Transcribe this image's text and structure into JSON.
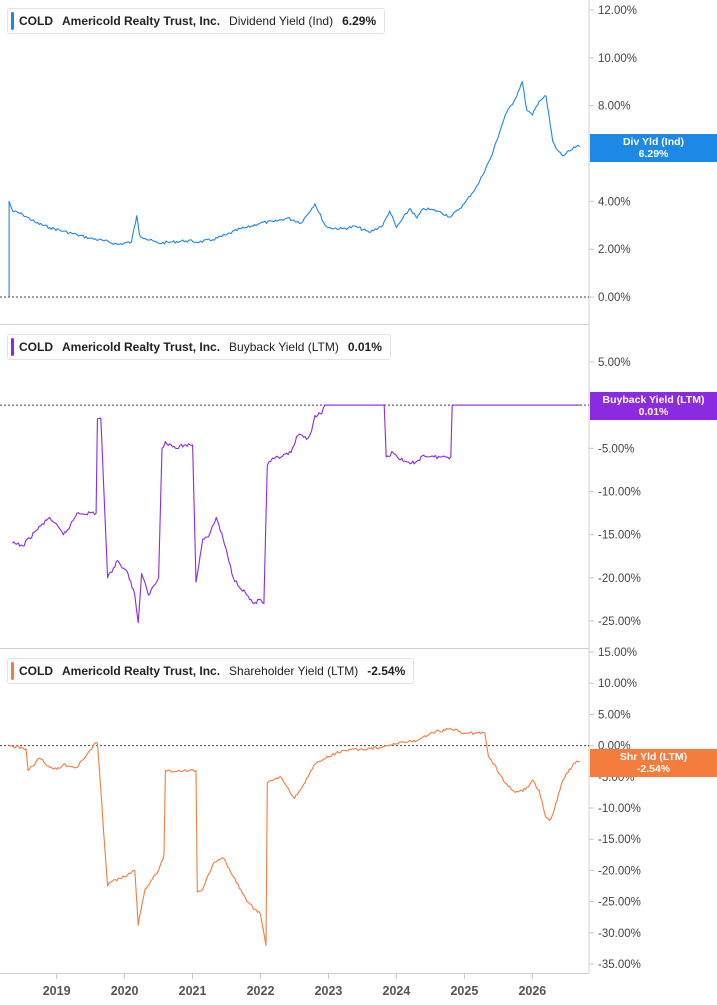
{
  "ticker": "COLD",
  "company": "Americold Realty Trust, Inc.",
  "panels": [
    {
      "key": "div",
      "metric": "Dividend Yield (Ind)",
      "value": "6.29%",
      "color": "#1e88e5",
      "badge_label": "Div Yld (Ind)",
      "badge_value": "6.29%"
    },
    {
      "key": "buyback",
      "metric": "Buyback Yield (LTM)",
      "value": "0.01%",
      "color": "#8a2be2",
      "badge_label": "Buyback Yield (LTM)",
      "badge_value": "0.01%"
    },
    {
      "key": "shareholder",
      "metric": "Shareholder Yield (LTM)",
      "value": "-2.54%",
      "color": "#f47c3c",
      "badge_label": "Shr Yld (LTM)",
      "badge_value": "-2.54%"
    }
  ],
  "x_axis": {
    "labels": [
      "2019",
      "2020",
      "2021",
      "2022",
      "2023",
      "2024",
      "2025",
      "2026"
    ]
  },
  "chart_data": [
    {
      "type": "line",
      "series": [
        {
          "name": "Dividend Yield (Ind)",
          "color": "#1e88e5"
        }
      ],
      "yticks": [
        "12.00%",
        "10.00%",
        "8.00%",
        "6.00%",
        "4.00%",
        "2.00%",
        "0.00%"
      ],
      "ylim": [
        0,
        12
      ],
      "x": [
        2018.3,
        2018.3,
        2018.35,
        2018.5,
        2018.7,
        2018.9,
        2019.1,
        2019.3,
        2019.5,
        2019.7,
        2019.9,
        2020.1,
        2020.18,
        2020.22,
        2020.3,
        2020.5,
        2020.7,
        2020.9,
        2021.1,
        2021.3,
        2021.5,
        2021.7,
        2021.8,
        2022.0,
        2022.2,
        2022.4,
        2022.6,
        2022.8,
        2022.95,
        2023.0,
        2023.2,
        2023.4,
        2023.6,
        2023.8,
        2023.9,
        2024.0,
        2024.2,
        2024.3,
        2024.4,
        2024.6,
        2024.8,
        2025.0,
        2025.2,
        2025.4,
        2025.6,
        2025.75,
        2025.85,
        2025.92,
        2026.0,
        2026.1,
        2026.2,
        2026.3,
        2026.35,
        2026.45,
        2026.55,
        2026.65,
        2026.7
      ],
      "values": [
        0,
        4.0,
        3.6,
        3.45,
        3.1,
        2.9,
        2.75,
        2.6,
        2.45,
        2.35,
        2.2,
        2.3,
        3.4,
        2.6,
        2.45,
        2.25,
        2.3,
        2.35,
        2.3,
        2.4,
        2.6,
        2.85,
        2.9,
        3.1,
        3.15,
        3.3,
        3.1,
        3.9,
        3.0,
        2.9,
        2.85,
        2.95,
        2.7,
        3.0,
        3.6,
        2.9,
        3.7,
        3.3,
        3.7,
        3.6,
        3.35,
        3.9,
        4.7,
        5.9,
        7.6,
        8.3,
        9.0,
        7.8,
        7.6,
        8.2,
        8.4,
        6.5,
        6.2,
        5.9,
        6.1,
        6.3,
        6.29
      ]
    },
    {
      "type": "line",
      "series": [
        {
          "name": "Buyback Yield (LTM)",
          "color": "#8a2be2"
        }
      ],
      "yticks": [
        "5.00%",
        "-5.00%",
        "-10.00%",
        "-15.00%",
        "-20.00%",
        "-25.00%"
      ],
      "ylim": [
        -27.5,
        8.2
      ],
      "x": [
        2018.35,
        2018.5,
        2018.7,
        2018.9,
        2019.1,
        2019.2,
        2019.3,
        2019.58,
        2019.6,
        2019.65,
        2019.75,
        2019.9,
        2020.05,
        2020.15,
        2020.2,
        2020.25,
        2020.35,
        2020.5,
        2020.55,
        2020.6,
        2020.75,
        2020.9,
        2021.0,
        2021.05,
        2021.15,
        2021.25,
        2021.35,
        2021.45,
        2021.6,
        2021.8,
        2021.9,
        2022.0,
        2022.05,
        2022.1,
        2022.15,
        2022.2,
        2022.3,
        2022.45,
        2022.55,
        2022.7,
        2022.75,
        2022.8,
        2022.9,
        2022.95,
        2023.0,
        2023.2,
        2023.5,
        2023.82,
        2023.85,
        2023.95,
        2024.1,
        2024.2,
        2024.3,
        2024.4,
        2024.55,
        2024.8,
        2024.82,
        2025.0,
        2025.5,
        2026.0,
        2026.5,
        2026.7
      ],
      "values": [
        -16.0,
        -16.3,
        -14.5,
        -13.0,
        -15.0,
        -14.0,
        -12.5,
        -12.5,
        -1.6,
        -1.5,
        -20.0,
        -18.0,
        -19.5,
        -22.0,
        -25.2,
        -19.5,
        -22.0,
        -20.0,
        -5.0,
        -4.2,
        -5.0,
        -4.6,
        -4.6,
        -20.5,
        -15.5,
        -15.0,
        -13.0,
        -15.5,
        -20.0,
        -22.0,
        -23.0,
        -22.5,
        -23.0,
        -7.0,
        -6.5,
        -6.2,
        -6.0,
        -5.5,
        -3.5,
        -3.8,
        -3.0,
        -1.2,
        -1.0,
        0.01,
        0.01,
        0.01,
        0.01,
        0.01,
        -6.0,
        -5.5,
        -6.5,
        -6.8,
        -6.5,
        -5.8,
        -6.0,
        -6.0,
        0.01,
        0.01,
        0.01,
        0.01,
        0.01,
        0.01
      ]
    },
    {
      "type": "line",
      "series": [
        {
          "name": "Shareholder Yield (LTM)",
          "color": "#f47c3c"
        }
      ],
      "yticks": [
        "15.00%",
        "10.00%",
        "5.00%",
        "0.00%",
        "-5.00%",
        "-10.00%",
        "-15.00%",
        "-20.00%",
        "-25.00%",
        "-30.00%",
        "-35.00%"
      ],
      "ylim": [
        -36.5,
        16
      ],
      "x": [
        2018.3,
        2018.55,
        2018.58,
        2018.75,
        2018.9,
        2019.0,
        2019.1,
        2019.3,
        2019.58,
        2019.6,
        2019.75,
        2019.77,
        2020.0,
        2020.15,
        2020.2,
        2020.3,
        2020.5,
        2020.58,
        2020.6,
        2021.05,
        2021.07,
        2021.15,
        2021.3,
        2021.45,
        2021.6,
        2021.8,
        2022.0,
        2022.08,
        2022.1,
        2022.3,
        2022.5,
        2022.7,
        2022.8,
        2023.0,
        2023.2,
        2023.5,
        2023.8,
        2024.0,
        2024.3,
        2024.5,
        2024.8,
        2025.0,
        2025.3,
        2025.35,
        2025.6,
        2025.75,
        2025.9,
        2026.0,
        2026.1,
        2026.2,
        2026.25,
        2026.3,
        2026.45,
        2026.5,
        2026.65,
        2026.7
      ],
      "values": [
        0,
        -0.5,
        -4.0,
        -2.0,
        -3.5,
        -3.8,
        -3.0,
        -3.5,
        0.5,
        0.4,
        -22.5,
        -22.0,
        -21.0,
        -20.0,
        -28.8,
        -23.0,
        -20.0,
        -17.5,
        -4.0,
        -4.0,
        -23.5,
        -23.0,
        -19.0,
        -18.0,
        -21.0,
        -25.0,
        -27.0,
        -32.0,
        -6.0,
        -5.0,
        -8.5,
        -5.0,
        -3.0,
        -1.8,
        -0.8,
        -0.6,
        -0.2,
        0.3,
        0.8,
        2.0,
        2.7,
        2.0,
        2.0,
        -1.5,
        -6.0,
        -7.5,
        -7.0,
        -5.5,
        -7.2,
        -11.5,
        -12.0,
        -11.0,
        -5.5,
        -4.5,
        -2.5,
        -2.54
      ]
    }
  ]
}
